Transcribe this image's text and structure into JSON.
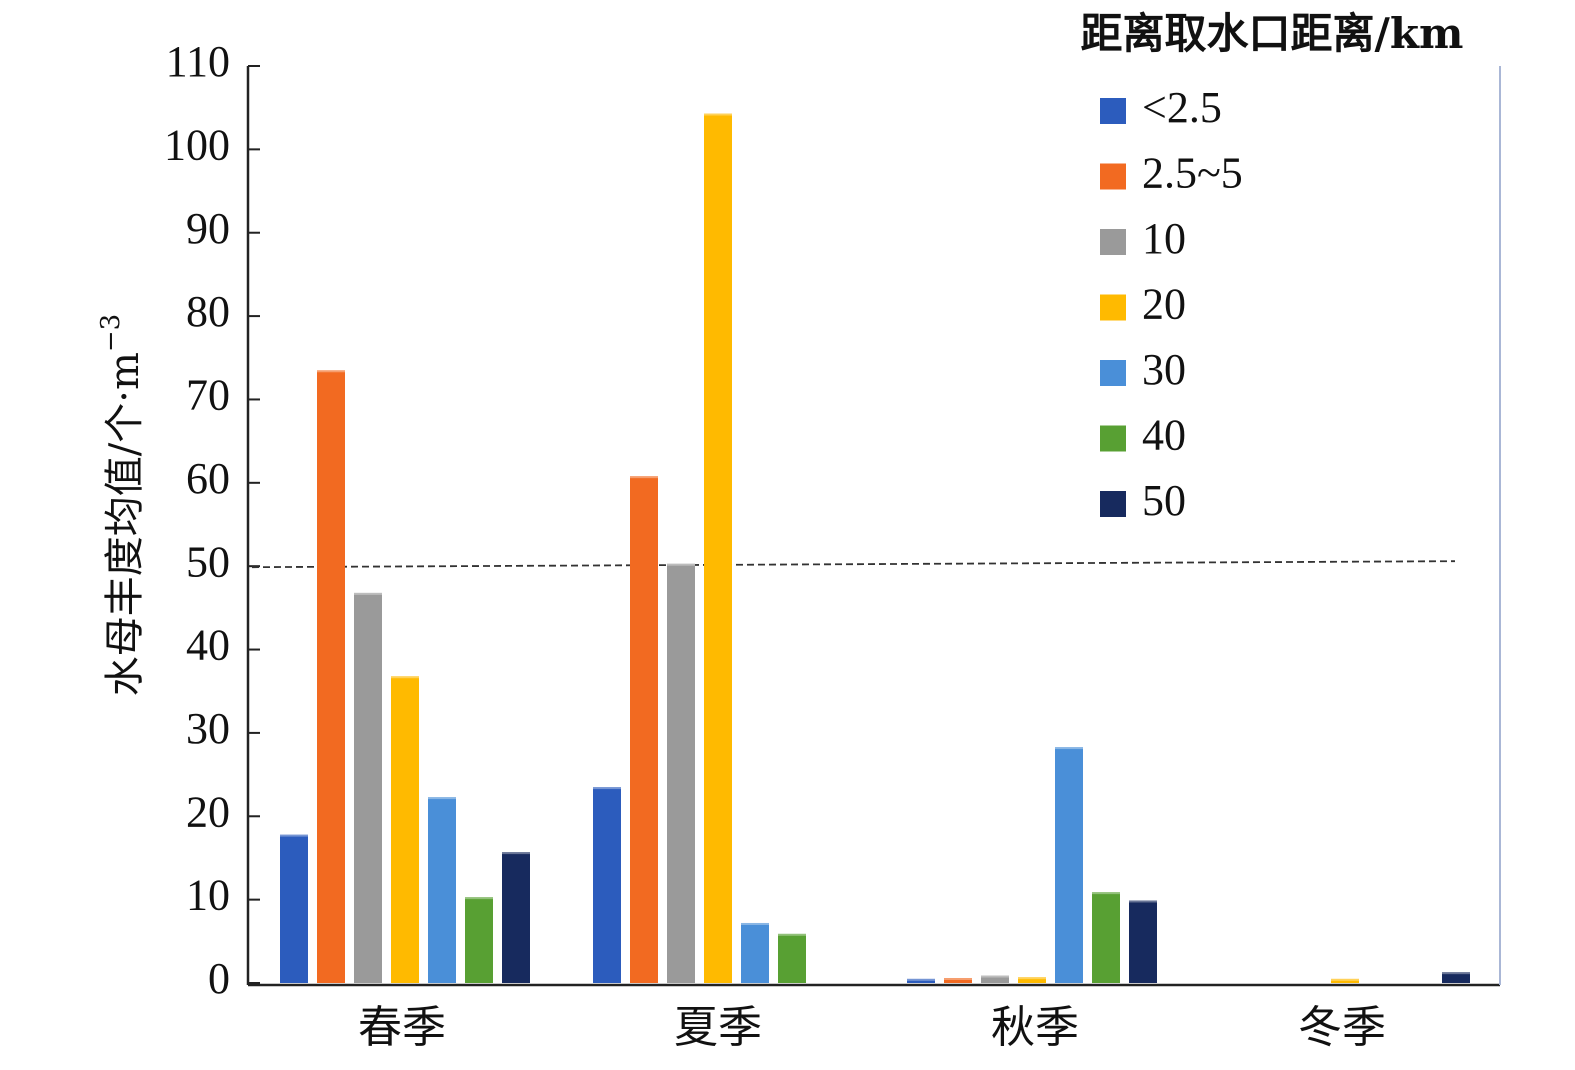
{
  "chart_data": {
    "type": "bar",
    "categories": [
      "春季",
      "夏季",
      "秋季",
      "冬季"
    ],
    "series": [
      {
        "name": "<2.5",
        "color": "#2c5cbd",
        "values": [
          17.8,
          23.5,
          0.5,
          0
        ]
      },
      {
        "name": "2.5~5",
        "color": "#f26a21",
        "values": [
          73.5,
          60.8,
          0.6,
          0
        ]
      },
      {
        "name": "10",
        "color": "#9a9a9a",
        "values": [
          46.8,
          50.3,
          0.9,
          0
        ]
      },
      {
        "name": "20",
        "color": "#ffba00",
        "values": [
          36.8,
          104.3,
          0.7,
          0.5
        ]
      },
      {
        "name": "30",
        "color": "#4a8fd8",
        "values": [
          22.3,
          7.2,
          28.3,
          0
        ]
      },
      {
        "name": "40",
        "color": "#58a033",
        "values": [
          10.3,
          5.9,
          10.9,
          0
        ]
      },
      {
        "name": "50",
        "color": "#172a5e",
        "values": [
          15.7,
          0,
          9.9,
          1.3
        ]
      }
    ],
    "ylabel_main": "水母丰度均值/个·m",
    "ylabel_sup": "−3",
    "xlabel": "",
    "ylim": [
      0,
      110
    ],
    "yticks": [
      0,
      10,
      20,
      30,
      40,
      50,
      60,
      70,
      80,
      90,
      100,
      110
    ],
    "reference_line": 50,
    "legend": {
      "title": "距离取水口距离/km",
      "position": "top-right"
    },
    "grid": false
  }
}
